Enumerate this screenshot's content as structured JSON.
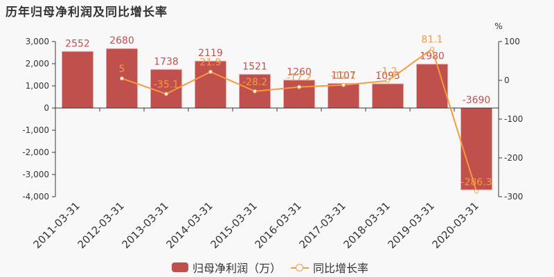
{
  "title": "历年归母净利润及同比增长率",
  "chart_data": {
    "type": "bar+line",
    "title": "历年归母净利润及同比增长率",
    "categories": [
      "2011-03-31",
      "2012-03-31",
      "2013-03-31",
      "2014-03-31",
      "2015-03-31",
      "2016-03-31",
      "2017-03-31",
      "2018-03-31",
      "2019-03-31",
      "2020-03-31"
    ],
    "series": [
      {
        "name": "归母净利润（万）",
        "type": "bar",
        "axis": "left",
        "color": "#c0504d",
        "values": [
          2552,
          2680,
          1738,
          2119,
          1521,
          1260,
          1107,
          1093,
          1980,
          -3690
        ]
      },
      {
        "name": "同比增长率",
        "type": "line",
        "axis": "right",
        "color": "#f79a3d",
        "values": [
          null,
          5,
          -35.1,
          21.9,
          -28.2,
          -17.2,
          -12.1,
          -1.2,
          81.1,
          -286.3
        ],
        "labels": [
          "",
          "5",
          "-35.1",
          "21.9",
          "-28.2",
          "-17.2",
          "-12.1",
          "-1.2",
          "81.1",
          "-286.3"
        ]
      }
    ],
    "left_axis": {
      "ylim": [
        -4000,
        3000
      ],
      "ticks": [
        "3,000",
        "2,000",
        "1,000",
        "0",
        "-1,000",
        "-2,000",
        "-3,000",
        "-4,000"
      ]
    },
    "right_axis": {
      "label": "%",
      "ylim": [
        -300,
        100
      ],
      "ticks": [
        "100",
        "0",
        "-100",
        "-200",
        "-300"
      ]
    },
    "legend": {
      "position": "bottom",
      "items": [
        "归母净利润（万）",
        "同比增长率"
      ]
    },
    "grid": false
  }
}
